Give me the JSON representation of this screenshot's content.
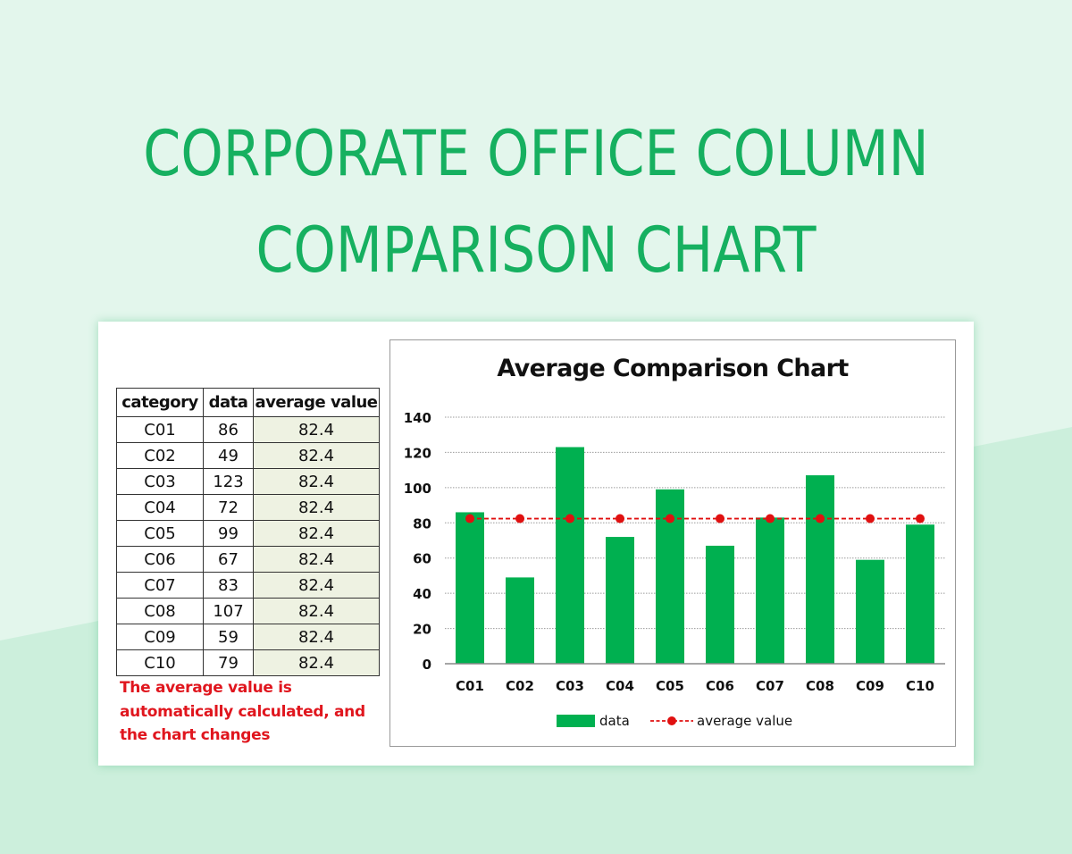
{
  "page": {
    "title_line1": "CORPORATE OFFICE COLUMN",
    "title_line2": "COMPARISON CHART",
    "colors": {
      "title_green": "#16b060",
      "bar_green": "#00b050",
      "avg_red": "#e01010",
      "note_red": "#e0161e",
      "avg_cell_bg": "#eef2e2"
    }
  },
  "table": {
    "headers": [
      "category",
      "data",
      "average value"
    ],
    "rows": [
      {
        "category": "C01",
        "data": "86",
        "avg": "82.4"
      },
      {
        "category": "C02",
        "data": "49",
        "avg": "82.4"
      },
      {
        "category": "C03",
        "data": "123",
        "avg": "82.4"
      },
      {
        "category": "C04",
        "data": "72",
        "avg": "82.4"
      },
      {
        "category": "C05",
        "data": "99",
        "avg": "82.4"
      },
      {
        "category": "C06",
        "data": "67",
        "avg": "82.4"
      },
      {
        "category": "C07",
        "data": "83",
        "avg": "82.4"
      },
      {
        "category": "C08",
        "data": "107",
        "avg": "82.4"
      },
      {
        "category": "C09",
        "data": "59",
        "avg": "82.4"
      },
      {
        "category": "C10",
        "data": "79",
        "avg": "82.4"
      }
    ],
    "note_lines": [
      "The average value is",
      "automatically calculated, and",
      "the chart changes"
    ]
  },
  "chart_data": {
    "type": "bar",
    "title": "Average Comparison Chart",
    "categories": [
      "C01",
      "C02",
      "C03",
      "C04",
      "C05",
      "C06",
      "C07",
      "C08",
      "C09",
      "C10"
    ],
    "series": [
      {
        "name": "data",
        "type": "bar",
        "color": "#00b050",
        "values": [
          86,
          49,
          123,
          72,
          99,
          67,
          83,
          107,
          59,
          79
        ]
      },
      {
        "name": "average value",
        "type": "line",
        "style": "dashed-with-markers",
        "color": "#e01010",
        "values": [
          82.4,
          82.4,
          82.4,
          82.4,
          82.4,
          82.4,
          82.4,
          82.4,
          82.4,
          82.4
        ]
      }
    ],
    "xlabel": "",
    "ylabel": "",
    "ylim": [
      0,
      140
    ],
    "yticks": [
      0,
      20,
      40,
      60,
      80,
      100,
      120,
      140
    ],
    "grid": "horizontal dotted",
    "legend_position": "bottom"
  }
}
